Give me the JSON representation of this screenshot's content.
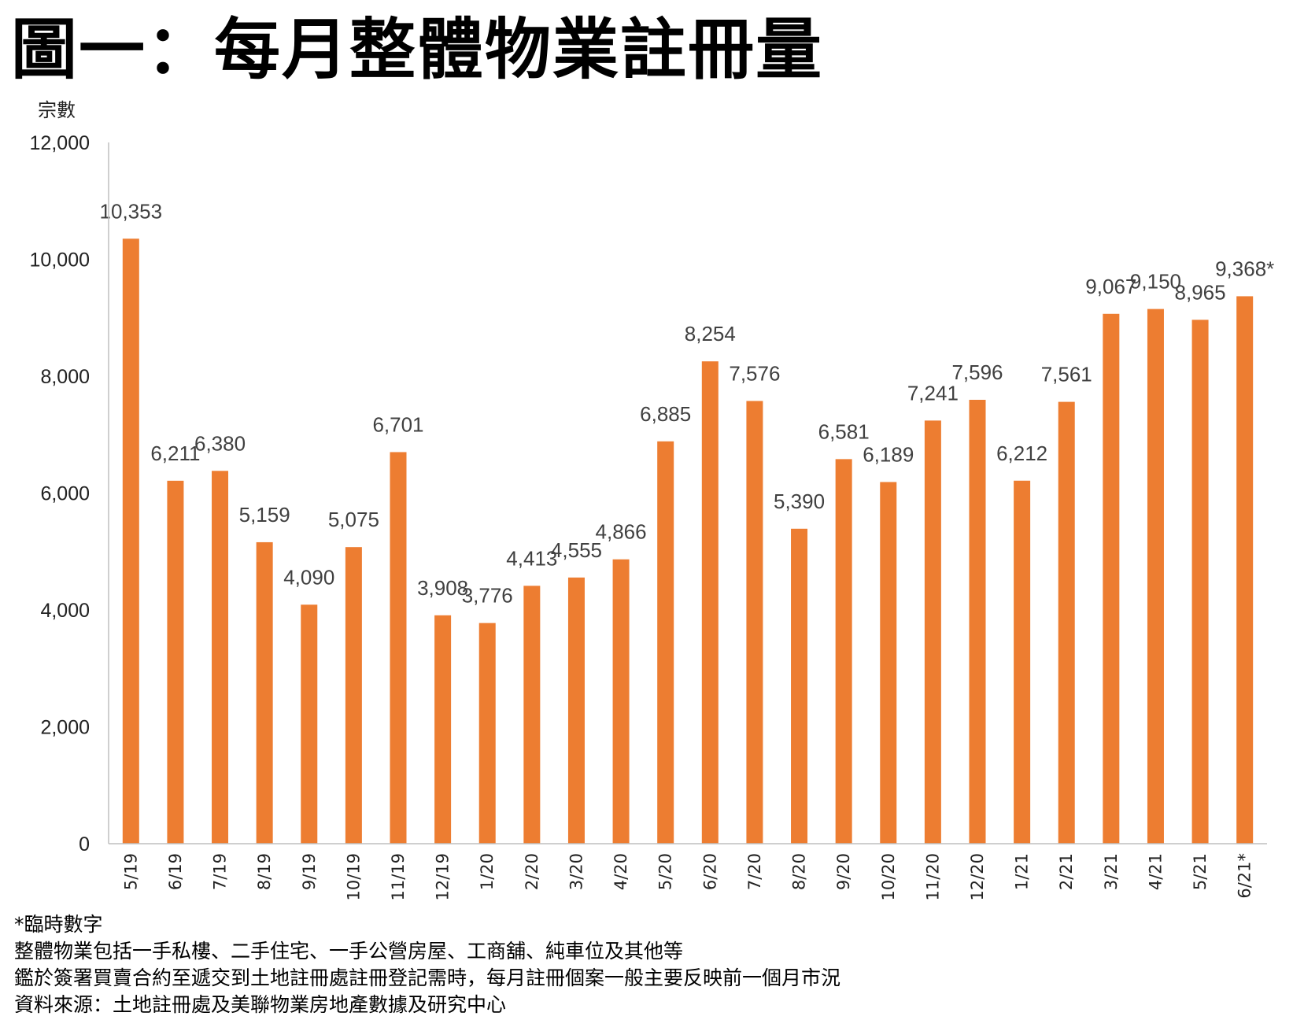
{
  "title": "圖一：每月整體物業註冊量",
  "chart_data": {
    "type": "bar",
    "ylabel": "宗數",
    "ylim": [
      0,
      12000
    ],
    "yticks": [
      0,
      2000,
      4000,
      6000,
      8000,
      10000,
      12000
    ],
    "ytick_labels": [
      "0",
      "2,000",
      "4,000",
      "6,000",
      "8,000",
      "10,000",
      "12,000"
    ],
    "categories": [
      "5/19",
      "6/19",
      "7/19",
      "8/19",
      "9/19",
      "10/19",
      "11/19",
      "12/19",
      "1/20",
      "2/20",
      "3/20",
      "4/20",
      "5/20",
      "6/20",
      "7/20",
      "8/20",
      "9/20",
      "10/20",
      "11/20",
      "12/20",
      "1/21",
      "2/21",
      "3/21",
      "4/21",
      "5/21",
      "6/21*"
    ],
    "values": [
      10353,
      6211,
      6380,
      5159,
      4090,
      5075,
      6701,
      3908,
      3776,
      4413,
      4555,
      4866,
      6885,
      8254,
      7576,
      5390,
      6581,
      6189,
      7241,
      7596,
      6212,
      7561,
      9067,
      9150,
      8965,
      9368
    ],
    "data_labels": [
      "10,353",
      "6,211",
      "6,380",
      "5,159",
      "4,090",
      "5,075",
      "6,701",
      "3,908",
      "3,776",
      "4,413",
      "4,555",
      "4,866",
      "6,885",
      "8,254",
      "7,576",
      "5,390",
      "6,581",
      "6,189",
      "7,241",
      "7,596",
      "6,212",
      "7,561",
      "9,067",
      "9,150",
      "8,965",
      "9,368*"
    ],
    "bar_color": "#ED7D31",
    "grid": false
  },
  "notes": [
    "*臨時數字",
    "整體物業包括一手私樓、二手住宅、一手公營房屋、工商舖、純車位及其他等",
    "鑑於簽署買賣合約至遞交到土地註冊處註冊登記需時，每月註冊個案一般主要反映前一個月市況",
    "資料來源：土地註冊處及美聯物業房地產數據及研究中心"
  ]
}
